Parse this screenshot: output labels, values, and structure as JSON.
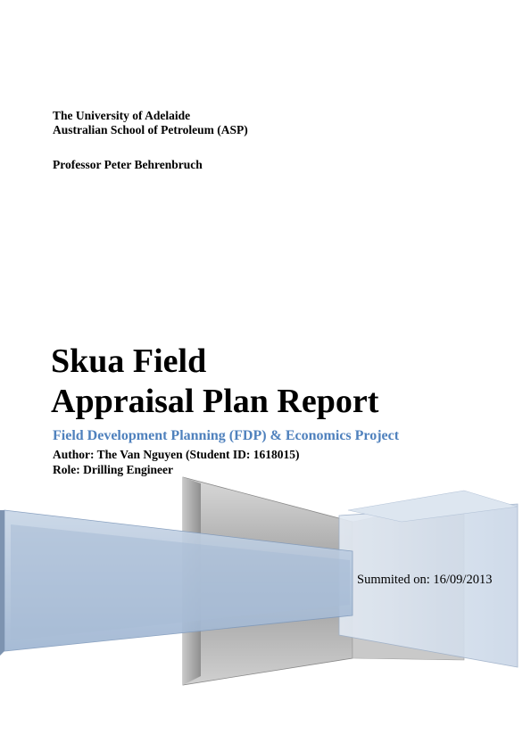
{
  "institution": {
    "line1": "The University of Adelaide",
    "line2": "Australian School of Petroleum (ASP)"
  },
  "professor": "Professor Peter Behrenbruch",
  "title": {
    "line1": "Skua Field",
    "line2": "Appraisal Plan Report"
  },
  "subtitle": "Field Development Planning (FDP) & Economics Project",
  "author": "Author: The Van Nguyen (Student ID: 1618015)",
  "role": "Role: Drilling Engineer",
  "submitted": "Summited on: 16/09/2013",
  "colors": {
    "subtitle_blue": "#4f81bd",
    "panel_blue": "#a9bdd6",
    "panel_gray": "#b3b3b3"
  }
}
